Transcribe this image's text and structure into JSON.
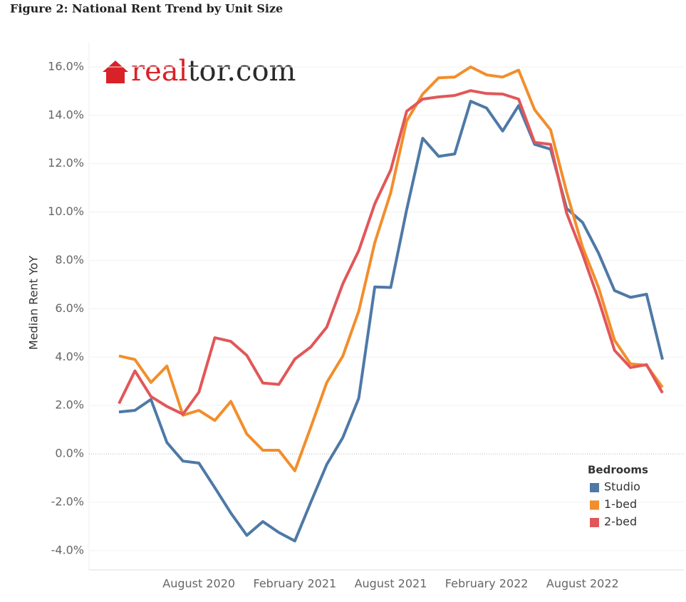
{
  "chart_data": {
    "type": "line",
    "title": "Figure 2: National Rent Trend by Unit Size",
    "logo": {
      "accent": "real",
      "rest": "tor.com"
    },
    "y_label": "Median Rent YoY",
    "legend_title": "Bedrooms",
    "legend": "bottom-right",
    "grid": true,
    "categories": [
      null,
      null,
      null,
      null,
      null,
      "August 2020",
      null,
      null,
      null,
      null,
      null,
      "February 2021",
      null,
      null,
      null,
      null,
      null,
      "August 2021",
      null,
      null,
      null,
      null,
      null,
      "February 2022",
      null,
      null,
      null,
      null,
      null,
      "August 2022",
      null,
      null,
      null,
      null,
      null
    ],
    "ylim": [
      -4.8,
      17
    ],
    "yticks": [
      {
        "value": -4,
        "label": "-4.0%"
      },
      {
        "value": -2,
        "label": "-2.0%"
      },
      {
        "value": 0,
        "label": "0.0%"
      },
      {
        "value": 2,
        "label": "2.0%"
      },
      {
        "value": 4,
        "label": "4.0%"
      },
      {
        "value": 6,
        "label": "6.0%"
      },
      {
        "value": 8,
        "label": "8.0%"
      },
      {
        "value": 10,
        "label": "10.0%"
      },
      {
        "value": 12,
        "label": "12.0%"
      },
      {
        "value": 14,
        "label": "14.0%"
      },
      {
        "value": 16,
        "label": "16.0%"
      }
    ],
    "series": [
      {
        "name": "Studio",
        "color": "#4e79a7",
        "values": [
          1.73,
          1.8,
          2.25,
          0.47,
          -0.3,
          -0.38,
          -1.4,
          -2.45,
          -3.37,
          -2.8,
          -3.25,
          -3.6,
          -2.0,
          -0.44,
          0.67,
          2.3,
          6.9,
          6.88,
          10.1,
          13.05,
          12.3,
          12.4,
          14.58,
          14.3,
          13.35,
          14.4,
          12.8,
          12.6,
          10.15,
          9.57,
          8.3,
          6.75,
          6.47,
          6.6,
          3.9
        ]
      },
      {
        "name": "1-bed",
        "color": "#f28e2b",
        "values": [
          4.05,
          3.9,
          2.95,
          3.63,
          1.6,
          1.8,
          1.38,
          2.17,
          0.82,
          0.15,
          0.15,
          -0.7,
          1.1,
          2.95,
          4.04,
          5.9,
          8.73,
          10.8,
          13.77,
          14.88,
          15.55,
          15.58,
          16.0,
          15.67,
          15.58,
          15.87,
          14.23,
          13.4,
          10.83,
          8.55,
          6.88,
          4.7,
          3.72,
          3.66,
          2.75
        ]
      },
      {
        "name": "2-bed",
        "color": "#e15759",
        "values": [
          2.08,
          3.43,
          2.37,
          1.96,
          1.64,
          2.55,
          4.8,
          4.65,
          4.07,
          2.93,
          2.87,
          3.92,
          4.42,
          5.24,
          7.03,
          8.4,
          10.34,
          11.74,
          14.17,
          14.67,
          14.76,
          14.82,
          15.02,
          14.9,
          14.88,
          14.67,
          12.88,
          12.8,
          9.96,
          8.26,
          6.38,
          4.28,
          3.57,
          3.69,
          2.52
        ]
      }
    ]
  }
}
